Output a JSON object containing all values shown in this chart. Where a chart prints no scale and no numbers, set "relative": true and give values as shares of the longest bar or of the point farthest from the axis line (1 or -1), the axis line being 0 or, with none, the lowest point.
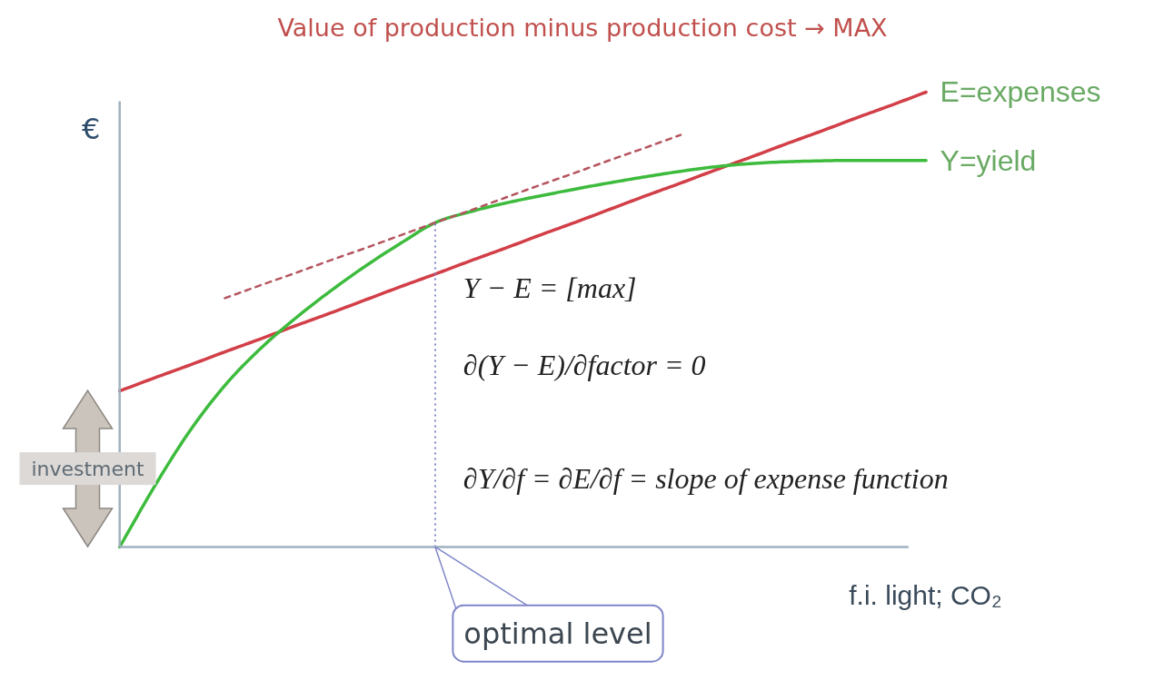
{
  "chart_data": {
    "type": "line",
    "title": "Value of production minus production cost → MAX",
    "xlabel": "f.i. light; CO₂",
    "ylabel": "€",
    "relative": true,
    "categories": [
      null,
      null,
      null,
      null,
      null,
      null,
      null,
      null,
      null,
      null,
      null,
      null,
      null,
      null,
      null,
      null,
      null,
      null,
      null,
      null,
      null,
      null,
      null,
      null
    ],
    "series": [
      {
        "name": "E=expenses",
        "color": "#d23f48",
        "line_style": "solid",
        "values": [
          0.343,
          0.372,
          0.4,
          0.429,
          0.457,
          0.486,
          0.514,
          0.543,
          0.572,
          0.6,
          0.629,
          0.657,
          0.686,
          0.714,
          0.743,
          0.772,
          0.8,
          0.829,
          0.857,
          0.886,
          0.914,
          0.943,
          0.971,
          1.0
        ]
      },
      {
        "name": "Y=yield",
        "color": "#3dbb3d",
        "line_style": "solid",
        "values": [
          0,
          0.134,
          0.255,
          0.355,
          0.435,
          0.502,
          0.562,
          0.617,
          0.667,
          0.713,
          0.737,
          0.756,
          0.772,
          0.787,
          0.801,
          0.814,
          0.826,
          0.836,
          0.843,
          0.847,
          0.849,
          0.85,
          0.85,
          0.85
        ]
      },
      {
        "type": "line",
        "color": "#b5555f",
        "line_style": "dashed",
        "values": [
          null,
          null,
          null,
          0.547,
          0.575,
          0.602,
          0.63,
          0.657,
          0.685,
          0.713,
          0.74,
          0.768,
          0.796,
          0.823,
          0.851,
          0.878,
          0.906,
          null,
          null,
          null,
          null,
          null,
          null,
          null
        ]
      }
    ],
    "annotations": [
      "investment",
      "optimal level",
      "Y − E = [max]",
      "∂(Y − E)/∂factor = 0",
      "∂Y/∂f = ∂E/∂f = slope of expense function"
    ]
  }
}
